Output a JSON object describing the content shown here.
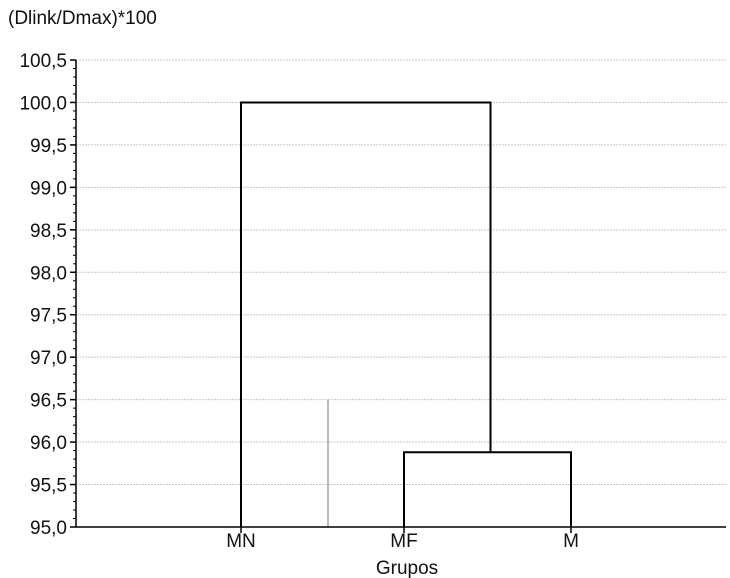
{
  "chart_data": {
    "type": "dendrogram",
    "ylabel": "(Dlink/Dmax)*100",
    "xlabel": "Grupos",
    "ylim": [
      95.0,
      100.5
    ],
    "y_ticks": [
      "95,0",
      "95,5",
      "96,0",
      "96,5",
      "97,0",
      "97,5",
      "98,0",
      "98,5",
      "99,0",
      "99,5",
      "100,0",
      "100,5"
    ],
    "y_tick_values": [
      95.0,
      95.5,
      96.0,
      96.5,
      97.0,
      97.5,
      98.0,
      98.5,
      99.0,
      99.5,
      100.0,
      100.5
    ],
    "categories": [
      "MN",
      "MF",
      "M"
    ],
    "merges": [
      {
        "left": "MF",
        "right": "M",
        "height": 95.88
      },
      {
        "left": "MN",
        "right": "MF+M",
        "height": 100.0
      }
    ],
    "grid": true
  }
}
